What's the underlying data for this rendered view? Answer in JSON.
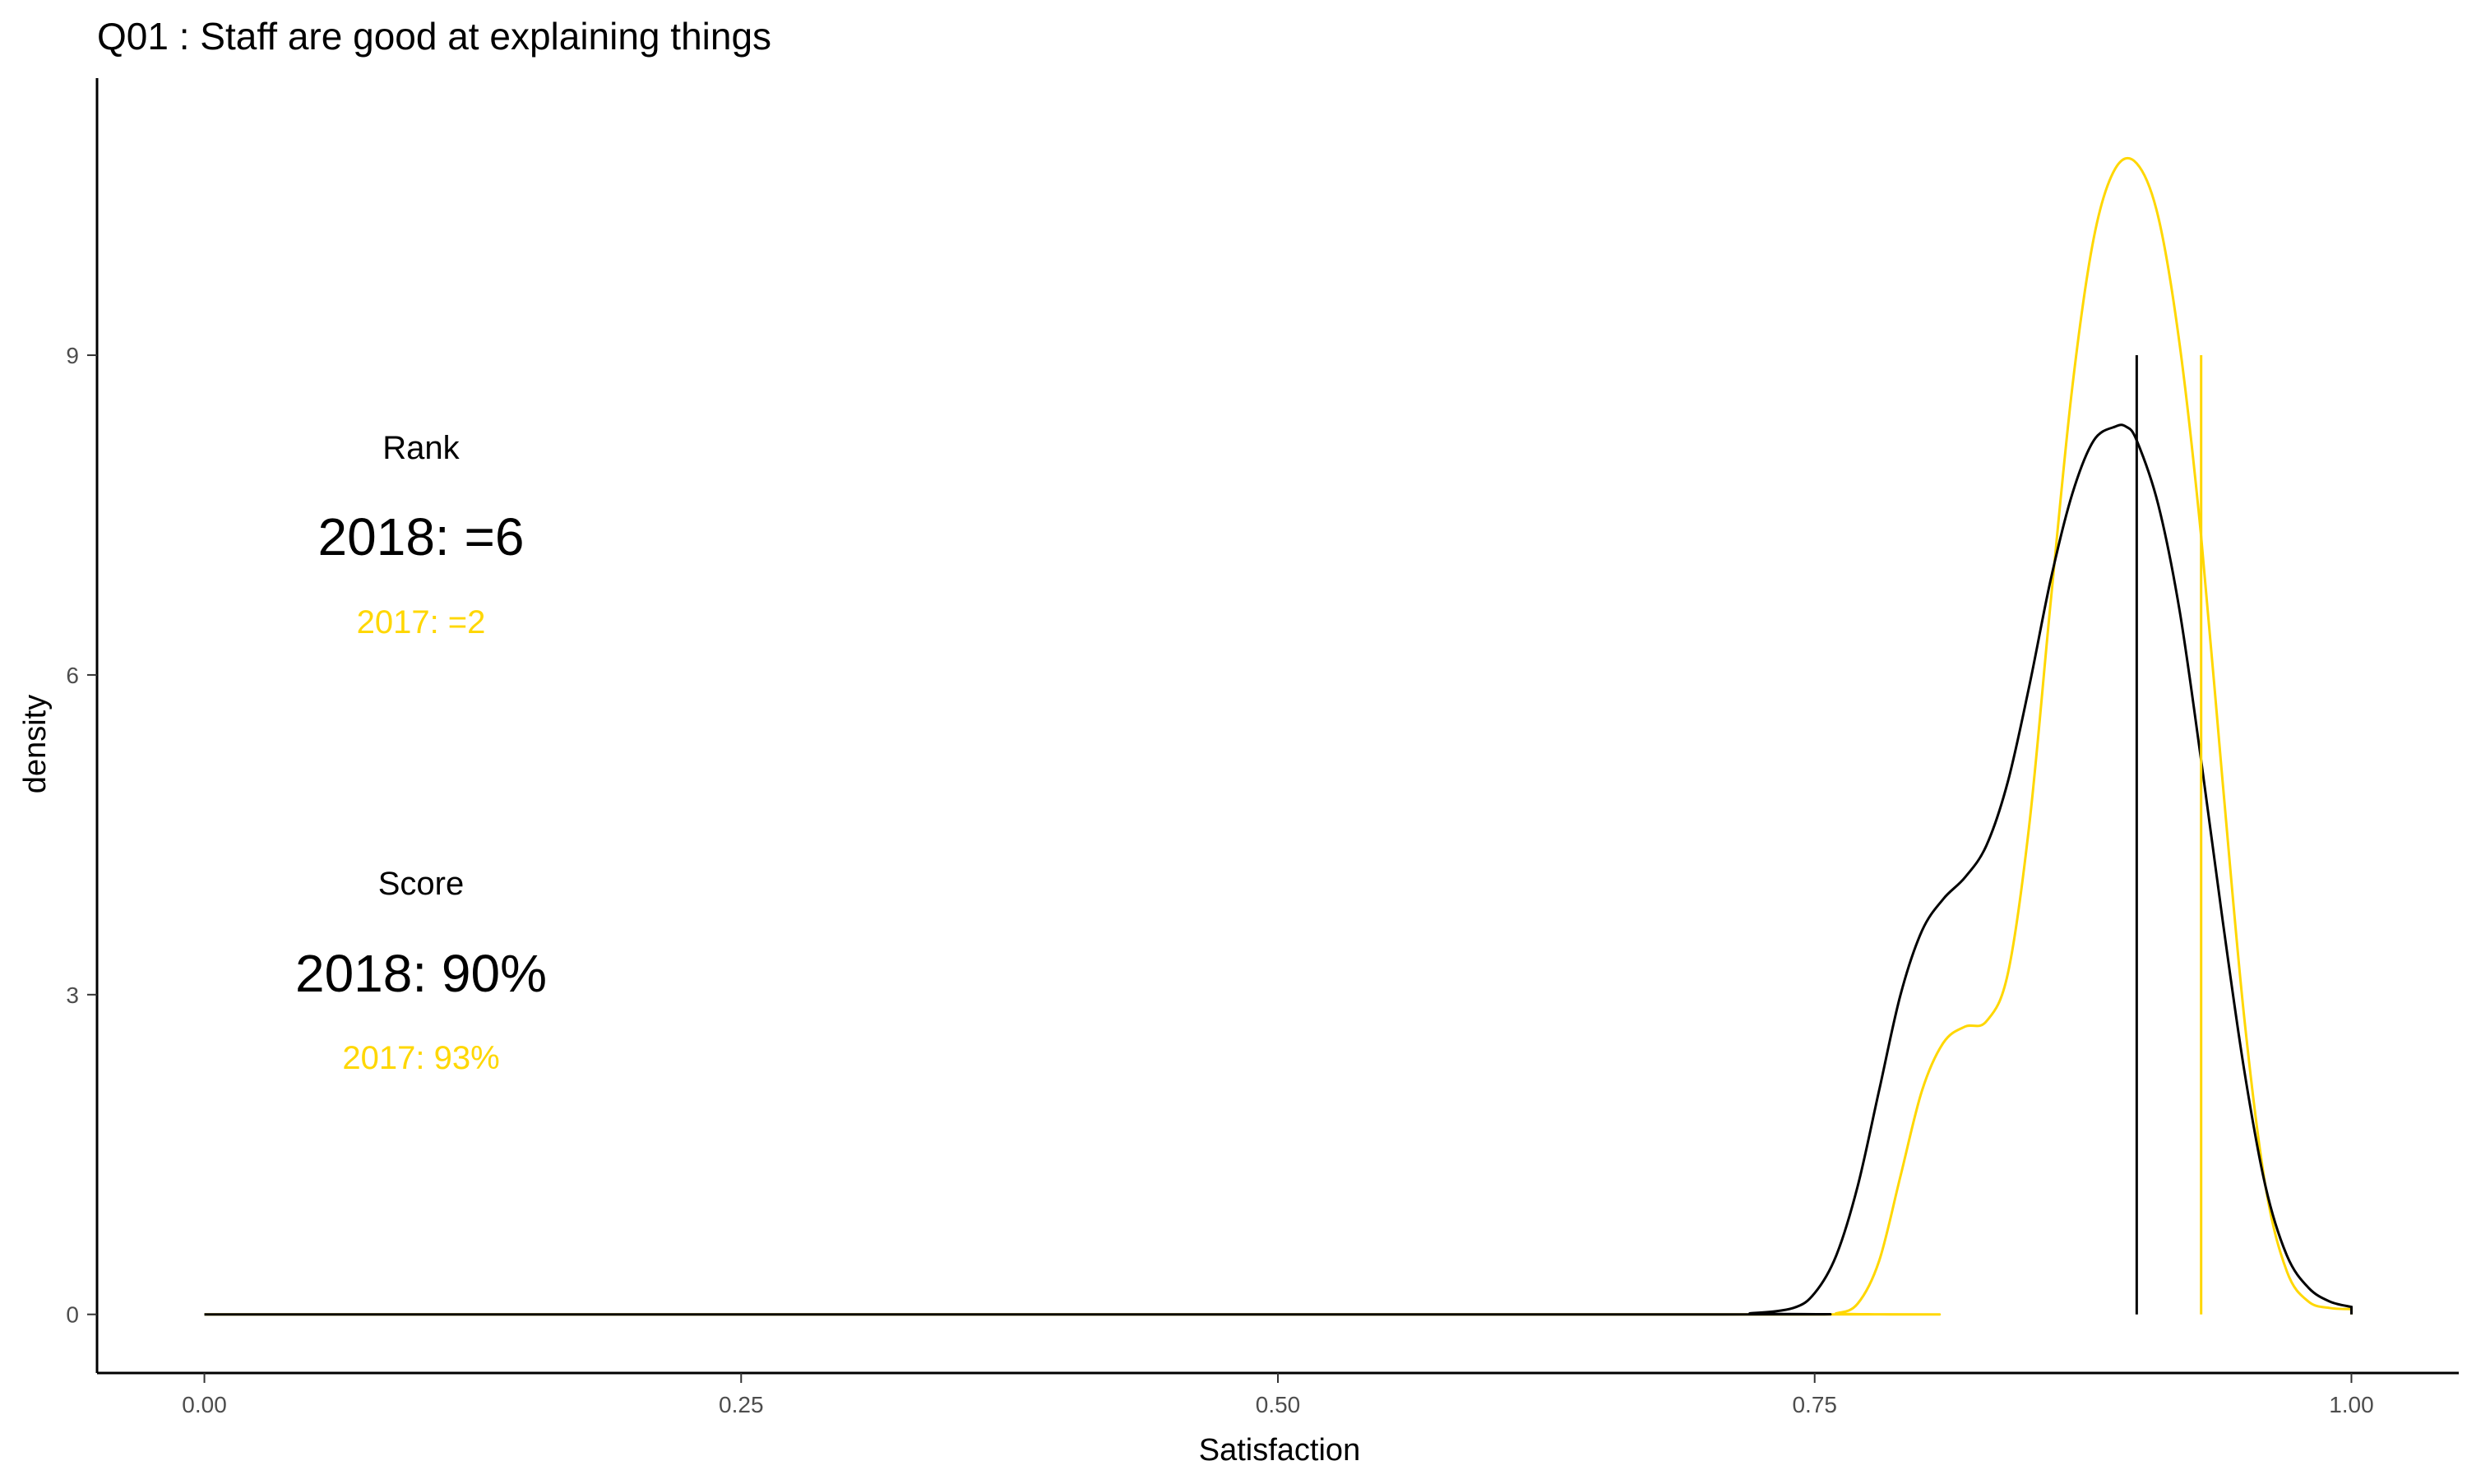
{
  "chart_data": {
    "type": "line",
    "title": "Q01 :   Staff are good at explaining things",
    "xlabel": "Satisfaction",
    "ylabel": "density",
    "xlim": [
      -0.05,
      1.05
    ],
    "ylim": [
      -0.55,
      11.6
    ],
    "x_ticks": [
      0,
      0.25,
      0.5,
      0.75,
      1
    ],
    "x_tick_labels": [
      "0.00",
      "0.25",
      "0.50",
      "0.75",
      "1.00"
    ],
    "y_ticks": [
      0,
      3,
      6,
      9
    ],
    "y_tick_labels": [
      "0",
      "3",
      "6",
      "9"
    ],
    "grid": false,
    "legend": "none",
    "series": [
      {
        "year": "2018",
        "color": "#000000",
        "x": [
          0.0,
          0.7,
          0.72,
          0.74,
          0.75,
          0.76,
          0.77,
          0.78,
          0.79,
          0.8,
          0.81,
          0.82,
          0.83,
          0.84,
          0.85,
          0.86,
          0.87,
          0.88,
          0.89,
          0.895,
          0.9,
          0.91,
          0.92,
          0.93,
          0.94,
          0.95,
          0.96,
          0.97,
          0.98,
          0.99,
          1.0
        ],
        "y": [
          0,
          0,
          0.01,
          0.06,
          0.2,
          0.55,
          1.2,
          2.1,
          3.0,
          3.6,
          3.9,
          4.1,
          4.4,
          5.0,
          5.9,
          6.9,
          7.7,
          8.2,
          8.33,
          8.33,
          8.2,
          7.6,
          6.6,
          5.2,
          3.7,
          2.3,
          1.2,
          0.55,
          0.25,
          0.12,
          0.07
        ]
      },
      {
        "year": "2017",
        "color": "#ffd700",
        "x": [
          0.0,
          0.75,
          0.76,
          0.77,
          0.78,
          0.79,
          0.8,
          0.81,
          0.82,
          0.83,
          0.84,
          0.85,
          0.86,
          0.87,
          0.88,
          0.89,
          0.9,
          0.91,
          0.92,
          0.93,
          0.94,
          0.95,
          0.96,
          0.97,
          0.98,
          0.99,
          1.0
        ],
        "y": [
          0,
          0,
          0.01,
          0.1,
          0.5,
          1.3,
          2.1,
          2.55,
          2.7,
          2.75,
          3.2,
          4.6,
          6.7,
          8.7,
          10.1,
          10.75,
          10.8,
          10.3,
          9.1,
          7.3,
          5.0,
          2.8,
          1.2,
          0.4,
          0.12,
          0.06,
          0.05
        ]
      }
    ],
    "mean_lines": [
      {
        "year": "2018",
        "x": 0.9,
        "ymax": 9,
        "color": "#000000"
      },
      {
        "year": "2017",
        "x": 0.93,
        "ymax": 9,
        "color": "#ffd700"
      }
    ],
    "annotations": {
      "rank_label": "Rank",
      "rank_2018": "2018: =6",
      "rank_2017": "2017: =2",
      "score_label": "Score",
      "score_2018": "2018: 90%",
      "score_2017": "2017: 93%",
      "color_2018": "#000000",
      "color_2017": "#ffd700"
    }
  }
}
